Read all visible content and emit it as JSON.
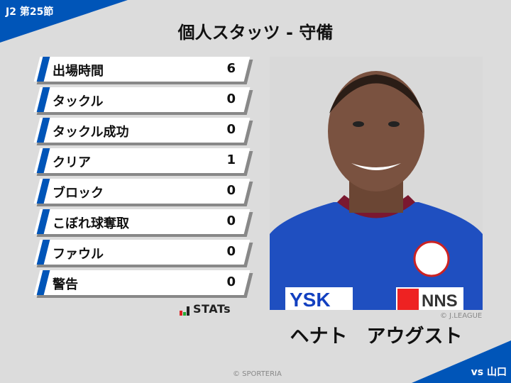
{
  "header": {
    "round": "J2 第25節",
    "title": "個人スタッツ - 守備"
  },
  "stats": [
    {
      "label": "出場時間",
      "value": "6"
    },
    {
      "label": "タックル",
      "value": "0"
    },
    {
      "label": "タックル成功",
      "value": "0"
    },
    {
      "label": "クリア",
      "value": "1"
    },
    {
      "label": "ブロック",
      "value": "0"
    },
    {
      "label": "こぼれ球奪取",
      "value": "0"
    },
    {
      "label": "ファウル",
      "value": "0"
    },
    {
      "label": "警告",
      "value": "0"
    }
  ],
  "brand": {
    "logo_text": "STATs"
  },
  "player": {
    "name": "ヘナト　アウグスト",
    "photo_credit": "© J.LEAGUE",
    "sponsor_1": "YSK",
    "sponsor_2": "NNS"
  },
  "footer": {
    "credit": "© SPORTERIA",
    "opponent": "vs 山口"
  },
  "colors": {
    "accent": "#0055b8",
    "background": "#dcdcdc"
  }
}
